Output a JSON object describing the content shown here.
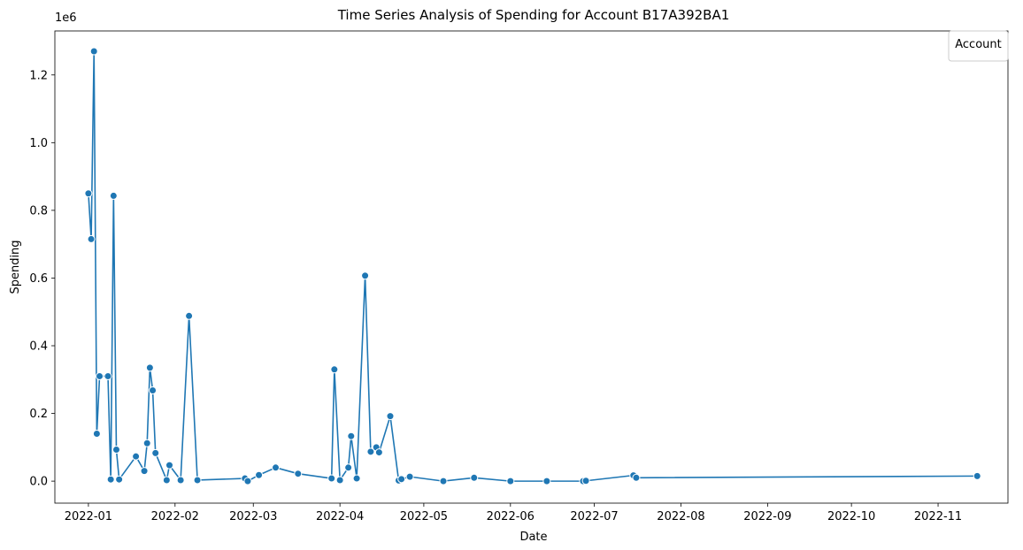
{
  "chart_data": {
    "type": "line",
    "title": "Time Series Analysis of Spending for Account B17A392BA1",
    "xlabel": "Date",
    "ylabel": "Spending",
    "y_offset_text": "1e6",
    "legend_title": "Account",
    "legend_placement": "top-right",
    "grid": false,
    "line_color": "#1f77b4",
    "xlim": [
      "2021-12-20",
      "2022-11-26"
    ],
    "ylim": [
      -65000,
      1330000
    ],
    "x_ticks": [
      {
        "date": "2022-01-01",
        "label": "2022-01"
      },
      {
        "date": "2022-02-01",
        "label": "2022-02"
      },
      {
        "date": "2022-03-01",
        "label": "2022-03"
      },
      {
        "date": "2022-04-01",
        "label": "2022-04"
      },
      {
        "date": "2022-05-01",
        "label": "2022-05"
      },
      {
        "date": "2022-06-01",
        "label": "2022-06"
      },
      {
        "date": "2022-07-01",
        "label": "2022-07"
      },
      {
        "date": "2022-08-01",
        "label": "2022-08"
      },
      {
        "date": "2022-09-01",
        "label": "2022-09"
      },
      {
        "date": "2022-10-01",
        "label": "2022-10"
      },
      {
        "date": "2022-11-01",
        "label": "2022-11"
      }
    ],
    "y_ticks": [
      {
        "value": 0,
        "label": "0.0"
      },
      {
        "value": 200000,
        "label": "0.2"
      },
      {
        "value": 400000,
        "label": "0.4"
      },
      {
        "value": 600000,
        "label": "0.6"
      },
      {
        "value": 800000,
        "label": "0.8"
      },
      {
        "value": 1000000,
        "label": "1.0"
      },
      {
        "value": 1200000,
        "label": "1.2"
      }
    ],
    "series": [
      {
        "x": [
          "2022-01-01",
          "2022-01-02",
          "2022-01-03",
          "2022-01-04",
          "2022-01-05",
          "2022-01-08",
          "2022-01-09",
          "2022-01-10",
          "2022-01-11",
          "2022-01-12",
          "2022-01-18",
          "2022-01-21",
          "2022-01-22",
          "2022-01-23",
          "2022-01-24",
          "2022-01-25",
          "2022-01-29",
          "2022-01-30",
          "2022-02-03",
          "2022-02-06",
          "2022-02-09",
          "2022-02-26",
          "2022-02-27",
          "2022-03-03",
          "2022-03-09",
          "2022-03-17",
          "2022-03-29",
          "2022-03-30",
          "2022-04-01",
          "2022-04-04",
          "2022-04-05",
          "2022-04-07",
          "2022-04-10",
          "2022-04-12",
          "2022-04-14",
          "2022-04-15",
          "2022-04-19",
          "2022-04-22",
          "2022-04-23",
          "2022-04-26",
          "2022-05-08",
          "2022-05-19",
          "2022-06-01",
          "2022-06-14",
          "2022-06-27",
          "2022-06-28",
          "2022-07-15",
          "2022-07-16",
          "2022-11-15"
        ],
        "y": [
          850000,
          715000,
          1270000,
          140000,
          310000,
          310000,
          5000,
          843000,
          93000,
          5000,
          73000,
          30000,
          112000,
          335000,
          268000,
          83000,
          3000,
          47000,
          3000,
          488000,
          3000,
          8000,
          0,
          18000,
          40000,
          22000,
          8000,
          330000,
          3000,
          40000,
          133000,
          8000,
          607000,
          87000,
          100000,
          85000,
          192000,
          2000,
          6000,
          13000,
          0,
          10000,
          0,
          0,
          0,
          1000,
          17000,
          10000,
          15000
        ]
      }
    ]
  }
}
